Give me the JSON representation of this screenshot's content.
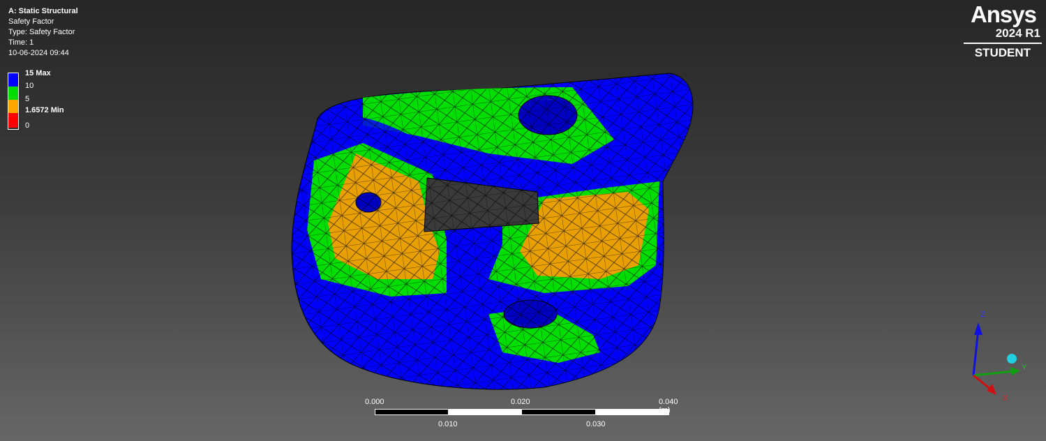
{
  "info": {
    "title": "A: Static Structural",
    "result": "Safety Factor",
    "type": "Type: Safety Factor",
    "time": "Time: 1",
    "date": "10-06-2024 09:44"
  },
  "legend": {
    "max_label": "15 Max",
    "l10": "10",
    "l5": "5",
    "min_label": "1.6572 Min",
    "l0": "0",
    "colors": {
      "blue": "#0000ff",
      "green": "#00e000",
      "orange": "#ffa500",
      "red": "#ff0000"
    }
  },
  "logo": {
    "brand": "Ansys",
    "version": "2024 R1",
    "edition": "STUDENT"
  },
  "scale": {
    "l0": "0.000",
    "l1": "0.010",
    "l2": "0.020",
    "l3": "0.030",
    "l4": "0.040 (m)"
  },
  "triad": {
    "z": "Z",
    "y": "Y",
    "x": "X"
  }
}
